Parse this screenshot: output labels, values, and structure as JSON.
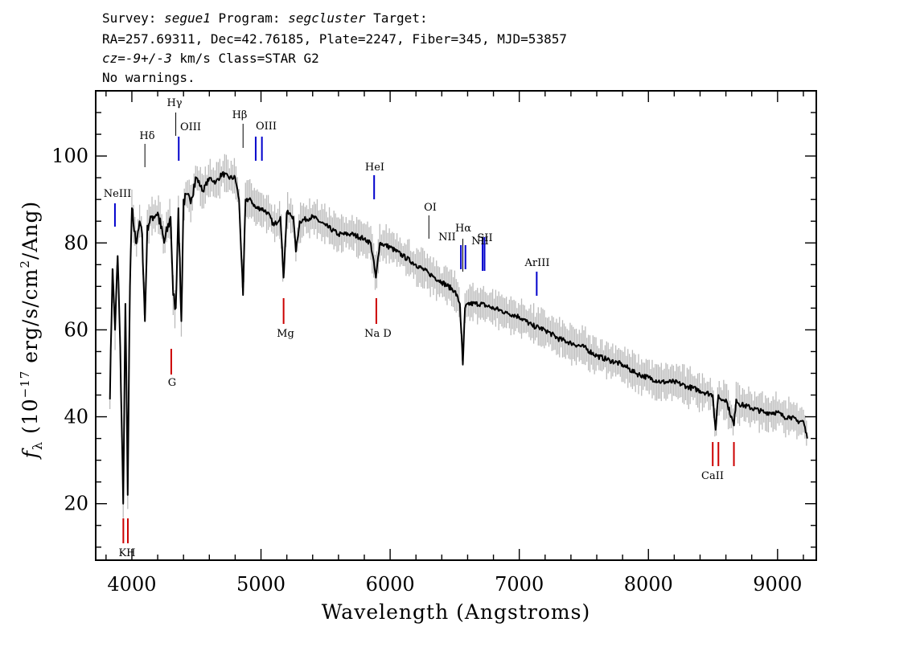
{
  "header": {
    "line1_prefix": "Survey: ",
    "survey": "segue1",
    "line1_mid": " Program: ",
    "program": "segcluster",
    "line1_suffix": " Target:",
    "line2": "RA=257.69311, Dec=42.76185, Plate=2247, Fiber=345, MJD=53857",
    "cz_label": "cz=",
    "cz_value": "-9+/-3",
    "cz_suffix": " km/s Class=STAR G2",
    "line4": "No warnings."
  },
  "chart_data": {
    "type": "line",
    "xlabel": "Wavelength (Angstroms)",
    "ylabel": "f_λ (10^-17 erg/s/cm^2/Ang)",
    "xlim": [
      3720,
      9300
    ],
    "ylim": [
      7,
      115
    ],
    "x_ticks": [
      4000,
      5000,
      6000,
      7000,
      8000,
      9000
    ],
    "y_ticks": [
      20,
      40,
      60,
      80,
      100
    ],
    "grid": false,
    "series": [
      {
        "role": "flux",
        "color": "#000000",
        "x": [
          3830,
          3850,
          3870,
          3890,
          3910,
          3933,
          3950,
          3968,
          3985,
          4000,
          4030,
          4060,
          4080,
          4101,
          4120,
          4150,
          4200,
          4250,
          4300,
          4320,
          4340,
          4360,
          4383,
          4400,
          4450,
          4500,
          4550,
          4600,
          4650,
          4700,
          4750,
          4800,
          4830,
          4861,
          4880,
          4920,
          4960,
          5000,
          5050,
          5100,
          5150,
          5175,
          5200,
          5250,
          5270,
          5300,
          5400,
          5500,
          5600,
          5700,
          5800,
          5850,
          5890,
          5920,
          6000,
          6100,
          6200,
          6300,
          6400,
          6500,
          6540,
          6563,
          6580,
          6600,
          6700,
          6800,
          6900,
          7000,
          7100,
          7200,
          7300,
          7400,
          7500,
          7600,
          7700,
          7800,
          7900,
          8000,
          8100,
          8200,
          8300,
          8400,
          8498,
          8520,
          8542,
          8560,
          8600,
          8662,
          8680,
          8700,
          8800,
          8900,
          9000,
          9050,
          9100,
          9150,
          9200,
          9230
        ],
        "y": [
          44,
          74,
          60,
          77,
          56,
          20,
          66,
          22,
          70,
          88,
          80,
          85,
          82,
          62,
          84,
          86,
          87,
          80,
          86,
          68,
          65,
          88,
          62,
          90,
          90,
          95,
          92,
          95,
          94,
          96,
          95,
          95,
          90,
          68,
          90,
          90,
          88,
          88,
          87,
          84,
          86,
          72,
          87,
          86,
          78,
          85,
          86,
          84,
          82,
          82,
          81,
          80,
          72,
          80,
          79,
          77,
          75,
          73,
          71,
          69,
          66,
          52,
          65,
          66,
          66,
          65,
          64,
          63,
          61,
          60,
          58,
          57,
          56,
          54,
          53,
          52,
          50,
          49,
          48,
          48,
          47,
          46,
          45,
          37,
          45,
          44,
          44,
          38,
          44,
          43,
          42,
          41,
          41,
          40,
          40,
          39,
          39,
          35
        ]
      }
    ],
    "lines": [
      {
        "name": "NeIII",
        "wavelength": 3869,
        "kind": "emission",
        "color": "#0000cc"
      },
      {
        "name": "Hδ",
        "wavelength": 4101,
        "kind": "emission",
        "color": "#000000"
      },
      {
        "name": "Hγ",
        "wavelength": 4340,
        "kind": "emission",
        "color": "#000000"
      },
      {
        "name": "OIII",
        "wavelength": 4363,
        "kind": "emission",
        "color": "#0000cc"
      },
      {
        "name": "Hβ",
        "wavelength": 4861,
        "kind": "emission",
        "color": "#000000"
      },
      {
        "name": "OIII",
        "wavelength": 4959,
        "kind": "emission",
        "color": "#0000cc"
      },
      {
        "name": "OIII",
        "wavelength": 5007,
        "kind": "emission",
        "color": "#0000cc"
      },
      {
        "name": "HeI",
        "wavelength": 5876,
        "kind": "emission",
        "color": "#0000cc"
      },
      {
        "name": "OI",
        "wavelength": 6300,
        "kind": "emission",
        "color": "#000000"
      },
      {
        "name": "NII",
        "wavelength": 6548,
        "kind": "emission",
        "color": "#0000cc"
      },
      {
        "name": "Hα",
        "wavelength": 6563,
        "kind": "emission",
        "color": "#000000"
      },
      {
        "name": "NII",
        "wavelength": 6583,
        "kind": "emission",
        "color": "#0000cc"
      },
      {
        "name": "SII",
        "wavelength": 6716,
        "kind": "emission",
        "color": "#0000cc"
      },
      {
        "name": "SII",
        "wavelength": 6731,
        "kind": "emission",
        "color": "#0000cc"
      },
      {
        "name": "ArIII",
        "wavelength": 7135,
        "kind": "emission",
        "color": "#0000cc"
      },
      {
        "name": "K",
        "wavelength": 3934,
        "kind": "absorption",
        "color": "#cc0000"
      },
      {
        "name": "H",
        "wavelength": 3969,
        "kind": "absorption",
        "color": "#cc0000"
      },
      {
        "name": "G",
        "wavelength": 4305,
        "kind": "absorption",
        "color": "#cc0000"
      },
      {
        "name": "Mg",
        "wavelength": 5175,
        "kind": "absorption",
        "color": "#cc0000"
      },
      {
        "name": "Na D",
        "wavelength": 5893,
        "kind": "absorption",
        "color": "#cc0000"
      },
      {
        "name": "CaII",
        "wavelength": 8498,
        "kind": "absorption",
        "color": "#cc0000"
      },
      {
        "name": "CaII",
        "wavelength": 8542,
        "kind": "absorption",
        "color": "#cc0000"
      },
      {
        "name": "CaII",
        "wavelength": 8662,
        "kind": "absorption",
        "color": "#cc0000"
      }
    ],
    "line_labels": [
      {
        "text": "NeIII"
      },
      {
        "text": "Hδ"
      },
      {
        "text": "Hγ"
      },
      {
        "text": "OIII"
      },
      {
        "text": "Hβ"
      },
      {
        "text": "OIII"
      },
      {
        "text": "HeI"
      },
      {
        "text": "OI"
      },
      {
        "text": "NII"
      },
      {
        "text": "Hα"
      },
      {
        "text": "SII"
      },
      {
        "text": "NII"
      },
      {
        "text": "ArIII"
      },
      {
        "text": "KH"
      },
      {
        "text": "G"
      },
      {
        "text": "Mg"
      },
      {
        "text": "Na D"
      },
      {
        "text": "CaII"
      }
    ],
    "noise_color": "#bbbbbb"
  }
}
